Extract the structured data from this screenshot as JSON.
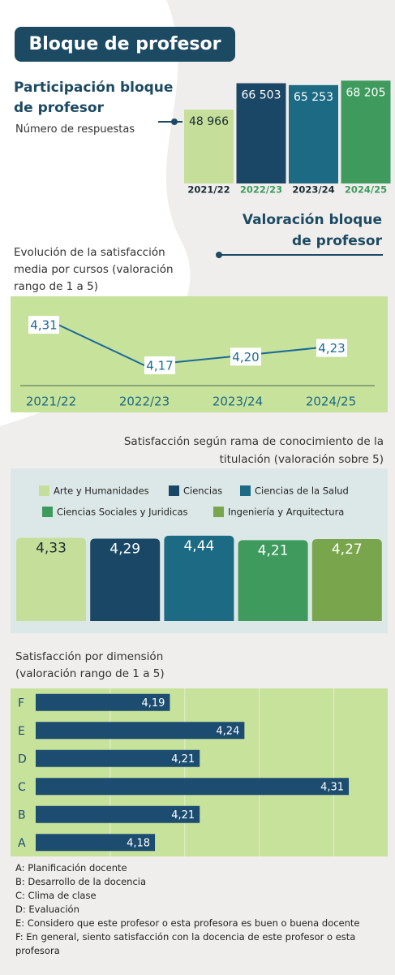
{
  "title": "Bloque de profesor",
  "chart_data": [
    {
      "type": "bar",
      "title": "Participación bloque de profesor",
      "subtitle": "Número de respuestas",
      "categories": [
        "2021/22",
        "2022/23",
        "2023/24",
        "2024/25"
      ],
      "values": [
        48966,
        66503,
        65253,
        68205
      ],
      "value_labels": [
        "48 966",
        "66 503",
        "65 253",
        "68 205"
      ],
      "colors": [
        "#c5df9a",
        "#1b4766",
        "#1c6a84",
        "#3f9a5e"
      ],
      "label_colors": [
        "#1b2b33",
        "#ffffff",
        "#ffffff",
        "#ffffff"
      ],
      "category_colors": [
        "#1b2b33",
        "#3f9a5e",
        "#1b2b33",
        "#3f9a5e"
      ],
      "ylim": [
        0,
        70000
      ]
    },
    {
      "type": "line",
      "section_title": "Valoración bloque de profesor",
      "title": "Evolución de la satisfacción media por cursos (valoración  rango de 1 a 5)",
      "categories": [
        "2021/22",
        "2022/23",
        "2023/24",
        "2024/25"
      ],
      "values": [
        4.31,
        4.17,
        4.2,
        4.23
      ],
      "value_labels": [
        "4,31",
        "4,17",
        "4,20",
        "4,23"
      ],
      "color": "#1c6a9a",
      "background": "#c7e29b",
      "ylim": [
        4.1,
        4.4
      ]
    },
    {
      "type": "bar",
      "title": "Satisfacción según rama de conocimiento de la titulación (valoración sobre 5)",
      "series": [
        {
          "name": "Arte y Humanidades",
          "color": "#c5df9a",
          "values": [
            4.33
          ],
          "value_labels": [
            "4,33"
          ]
        },
        {
          "name": "Ciencias",
          "color": "#1b4766",
          "values": [
            4.29
          ],
          "value_labels": [
            "4,29"
          ]
        },
        {
          "name": "Ciencias de la Salud",
          "color": "#1c6a84",
          "values": [
            4.44
          ],
          "value_labels": [
            "4,44"
          ]
        },
        {
          "name": "Ciencias Sociales y Juridicas",
          "color": "#3f9a5e",
          "values": [
            4.21
          ],
          "value_labels": [
            "4,21"
          ]
        },
        {
          "name": "Ingeniería y Arquitectura",
          "color": "#79a64d",
          "values": [
            4.27
          ],
          "value_labels": [
            "4,27"
          ]
        }
      ],
      "background": "#dce8e7",
      "ylim": [
        0,
        4.5
      ]
    },
    {
      "type": "barh",
      "title": "Satisfacción por dimensión (valoración rango de 1 a 5)",
      "categories": [
        "A",
        "B",
        "C",
        "D",
        "E",
        "F"
      ],
      "values": [
        4.18,
        4.21,
        4.31,
        4.21,
        4.24,
        4.19
      ],
      "value_labels": [
        "4,18",
        "4,21",
        "4,31",
        "4,21",
        "4,24",
        "4,19"
      ],
      "color": "#1c4c70",
      "background": "#c7e29b",
      "xlim": [
        4.1,
        4.335
      ],
      "xticks": [
        4.15,
        4.2,
        4.25,
        4.3
      ],
      "grid": true,
      "notes": [
        "A: Planificación docente",
        "B: Desarrollo de la docencia",
        "C: Clima de clase",
        "D: Evaluación",
        "E: Considero que este profesor o esta profesora es buen o buena docente",
        "F: En general, siento satisfacción con la docencia de este profesor o esta profesora"
      ]
    }
  ]
}
